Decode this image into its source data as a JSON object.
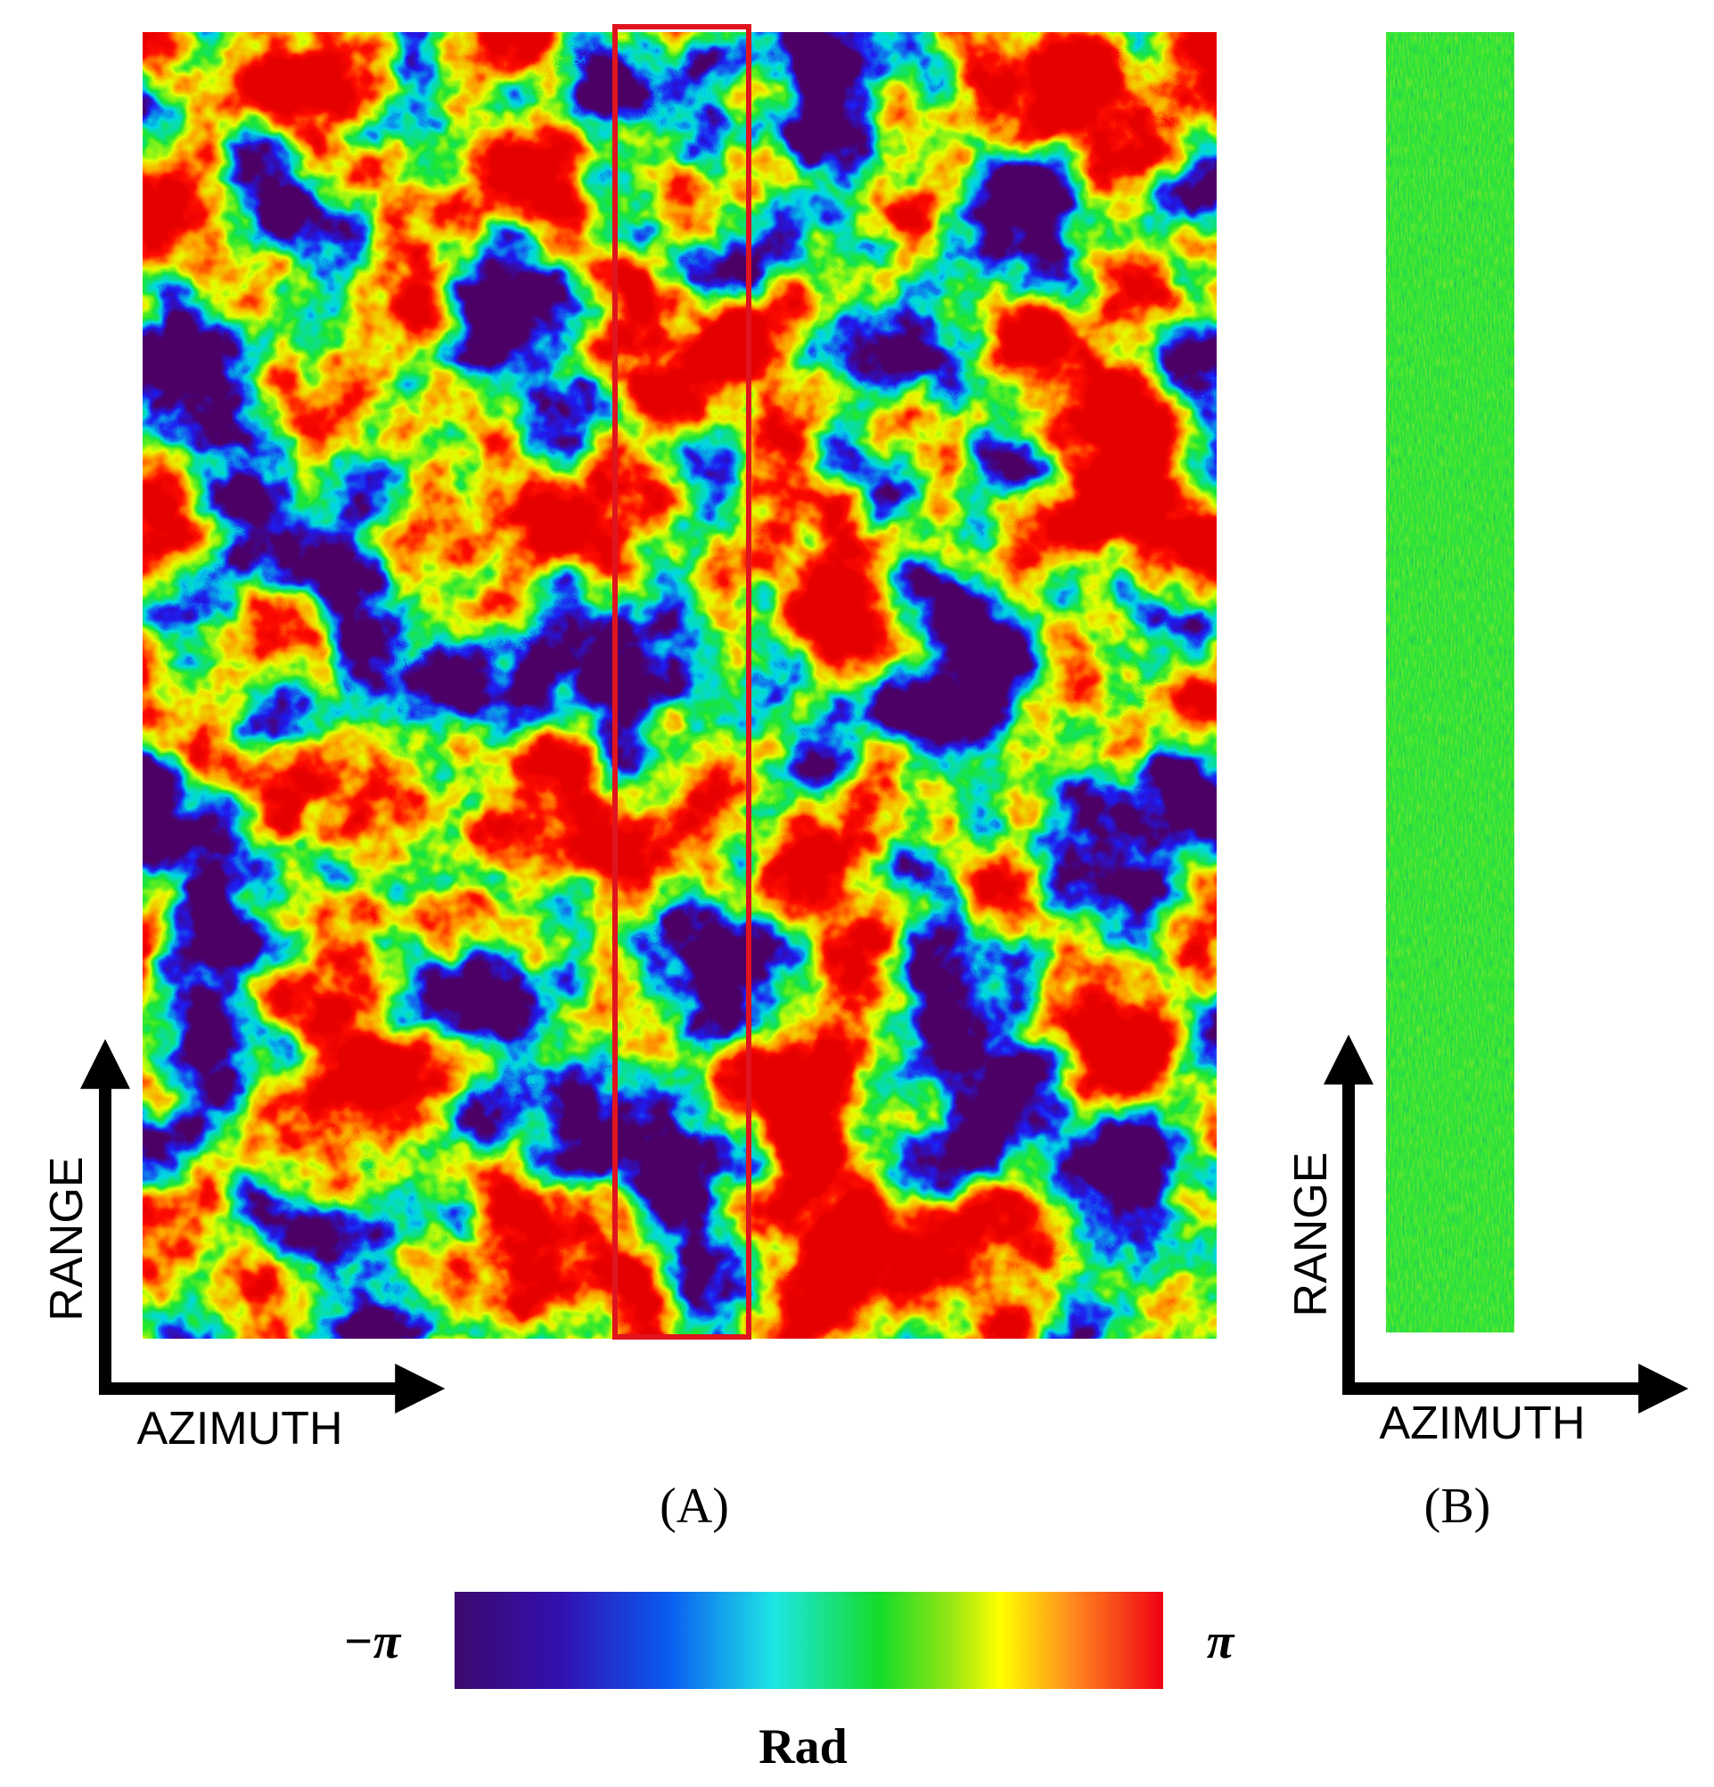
{
  "panels": [
    {
      "range_label": "RANGE",
      "azimuth_label": "AZIMUTH",
      "caption": "(A)"
    },
    {
      "range_label": "RANGE",
      "azimuth_label": "AZIMUTH",
      "caption": "(B)"
    }
  ],
  "colorbar": {
    "min_label": "−π",
    "max_label": "π",
    "unit": "Rad"
  }
}
